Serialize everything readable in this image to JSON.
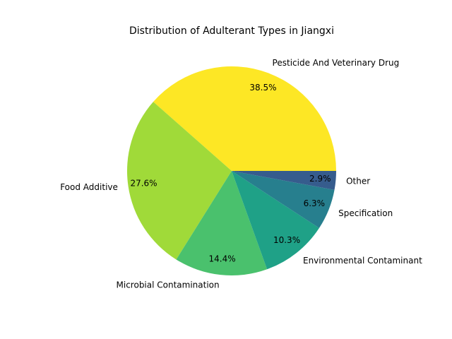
{
  "chart_data": {
    "type": "pie",
    "title": "Distribution of Adulterant Types in Jiangxi",
    "slices": [
      {
        "label": "Pesticide And Veterinary Drug",
        "value": 38.5,
        "pct_label": "38.5%",
        "color": "#fde725"
      },
      {
        "label": "Food Additive",
        "value": 27.6,
        "pct_label": "27.6%",
        "color": "#a0da39"
      },
      {
        "label": "Microbial Contamination",
        "value": 14.4,
        "pct_label": "14.4%",
        "color": "#4ac16d"
      },
      {
        "label": "Environmental Contaminant",
        "value": 10.3,
        "pct_label": "10.3%",
        "color": "#1fa187"
      },
      {
        "label": "Specification",
        "value": 6.3,
        "pct_label": "6.3%",
        "color": "#277f8e"
      },
      {
        "label": "Other",
        "value": 2.9,
        "pct_label": "2.9%",
        "color": "#365c8d"
      }
    ],
    "start_angle_deg": 0,
    "direction": "counterclockwise",
    "legend": "none"
  }
}
